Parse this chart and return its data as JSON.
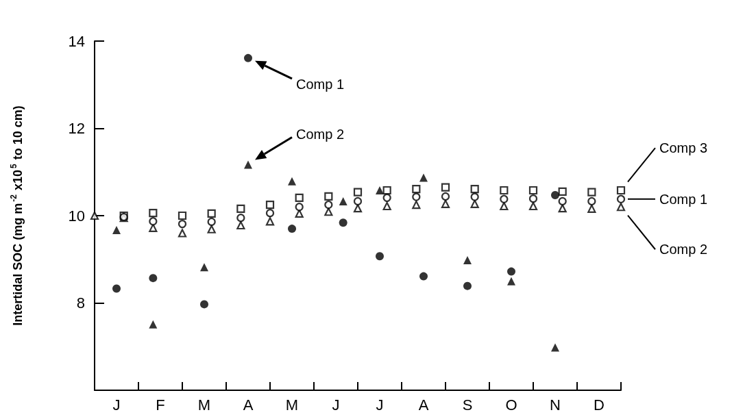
{
  "chart_data": {
    "type": "scatter",
    "ylabel": "Intertidal SOC (mg m$^{-2}$ x10$^{5}$ to 10 cm)",
    "ylim": [
      6,
      14
    ],
    "yticks": [
      8,
      10,
      12,
      14
    ],
    "categories": [
      null,
      null,
      null,
      "J",
      null,
      null,
      null,
      null,
      null,
      "F",
      null,
      null,
      null,
      null,
      null,
      "M",
      null,
      null,
      null,
      null,
      null,
      "A",
      null,
      null,
      null,
      null,
      null,
      "M",
      null,
      null,
      null,
      null,
      null,
      "J",
      null,
      null,
      null,
      null,
      null,
      "J",
      null,
      null,
      null,
      null,
      null,
      "A",
      null,
      null,
      null,
      null,
      null,
      "S",
      null,
      null,
      null,
      null,
      null,
      "O",
      null,
      null,
      null,
      null,
      null,
      "N",
      null,
      null,
      null,
      null,
      null,
      "D",
      null,
      null,
      null
    ],
    "annotations": [
      "Comp 1",
      "Comp 2"
    ],
    "series": [
      {
        "color": "#000000",
        "marker": "circle",
        "values": [
          null,
          null,
          null,
          8.33,
          null,
          null,
          null,
          null,
          8.57,
          null,
          null,
          null,
          null,
          null,
          null,
          7.97,
          null,
          null,
          null,
          null,
          null,
          13.61,
          null,
          null,
          null,
          null,
          null,
          9.7,
          null,
          null,
          null,
          null,
          null,
          null,
          9.84,
          null,
          null,
          null,
          null,
          9.07,
          null,
          null,
          null,
          null,
          null,
          8.61,
          null,
          null,
          null,
          null,
          null,
          8.39,
          null,
          null,
          null,
          null,
          null,
          8.72,
          null,
          null,
          null,
          null,
          null,
          10.47,
          null,
          null,
          null,
          null,
          null,
          null,
          null,
          null,
          null
        ]
      },
      {
        "color": "#000000",
        "marker": "triangle",
        "values": [
          null,
          null,
          null,
          9.67,
          null,
          null,
          null,
          null,
          7.51,
          null,
          null,
          null,
          null,
          null,
          null,
          8.82,
          null,
          null,
          null,
          null,
          null,
          11.17,
          null,
          null,
          null,
          null,
          null,
          10.79,
          null,
          null,
          null,
          null,
          null,
          null,
          10.33,
          null,
          null,
          null,
          null,
          10.58,
          null,
          null,
          null,
          null,
          null,
          10.87,
          null,
          null,
          null,
          null,
          null,
          8.98,
          null,
          null,
          null,
          null,
          null,
          8.5,
          null,
          null,
          null,
          null,
          null,
          6.98,
          null,
          null,
          null,
          null,
          null,
          null,
          null,
          null,
          null
        ]
      },
      {
        "name": "Comp 3",
        "color": "#ffffff",
        "marker": "square",
        "values": [
          null,
          null,
          null,
          null,
          10.0,
          null,
          null,
          null,
          10.06,
          null,
          null,
          null,
          10.0,
          null,
          null,
          null,
          10.05,
          null,
          null,
          null,
          10.16,
          null,
          null,
          null,
          10.25,
          null,
          null,
          null,
          10.41,
          null,
          null,
          null,
          10.44,
          null,
          null,
          null,
          10.54,
          null,
          null,
          null,
          10.58,
          null,
          null,
          null,
          10.61,
          null,
          null,
          null,
          10.65,
          null,
          null,
          null,
          10.61,
          null,
          null,
          null,
          10.58,
          null,
          null,
          null,
          10.58,
          null,
          null,
          null,
          10.55,
          null,
          null,
          null,
          10.54,
          null,
          null,
          null,
          10.58
        ]
      },
      {
        "name": "Comp 2",
        "color": "#ffffff",
        "marker": "triangle",
        "values": [
          10.0,
          null,
          null,
          null,
          9.95,
          null,
          null,
          null,
          9.72,
          null,
          null,
          null,
          9.6,
          null,
          null,
          null,
          9.69,
          null,
          null,
          null,
          9.78,
          null,
          null,
          null,
          9.87,
          null,
          null,
          null,
          10.05,
          null,
          null,
          null,
          10.09,
          null,
          null,
          null,
          10.17,
          null,
          null,
          null,
          10.22,
          null,
          null,
          null,
          10.25,
          null,
          null,
          null,
          10.27,
          null,
          null,
          null,
          10.27,
          null,
          null,
          null,
          10.22,
          null,
          null,
          null,
          10.22,
          null,
          null,
          null,
          10.17,
          null,
          null,
          null,
          10.16,
          null,
          null,
          null,
          10.2
        ]
      },
      {
        "name": "Comp 1",
        "color": "#ffffff",
        "marker": "circle",
        "values": [
          null,
          null,
          null,
          null,
          9.97,
          null,
          null,
          null,
          9.87,
          null,
          null,
          null,
          9.81,
          null,
          null,
          null,
          9.86,
          null,
          null,
          null,
          9.95,
          null,
          null,
          null,
          10.06,
          null,
          null,
          null,
          10.2,
          null,
          null,
          null,
          10.25,
          null,
          null,
          null,
          10.33,
          null,
          null,
          null,
          10.41,
          null,
          null,
          null,
          10.43,
          null,
          null,
          null,
          10.44,
          null,
          null,
          null,
          10.43,
          null,
          null,
          null,
          10.38,
          null,
          null,
          null,
          10.39,
          null,
          null,
          null,
          10.33,
          null,
          null,
          null,
          10.33,
          null,
          null,
          null,
          10.38
        ]
      }
    ]
  }
}
